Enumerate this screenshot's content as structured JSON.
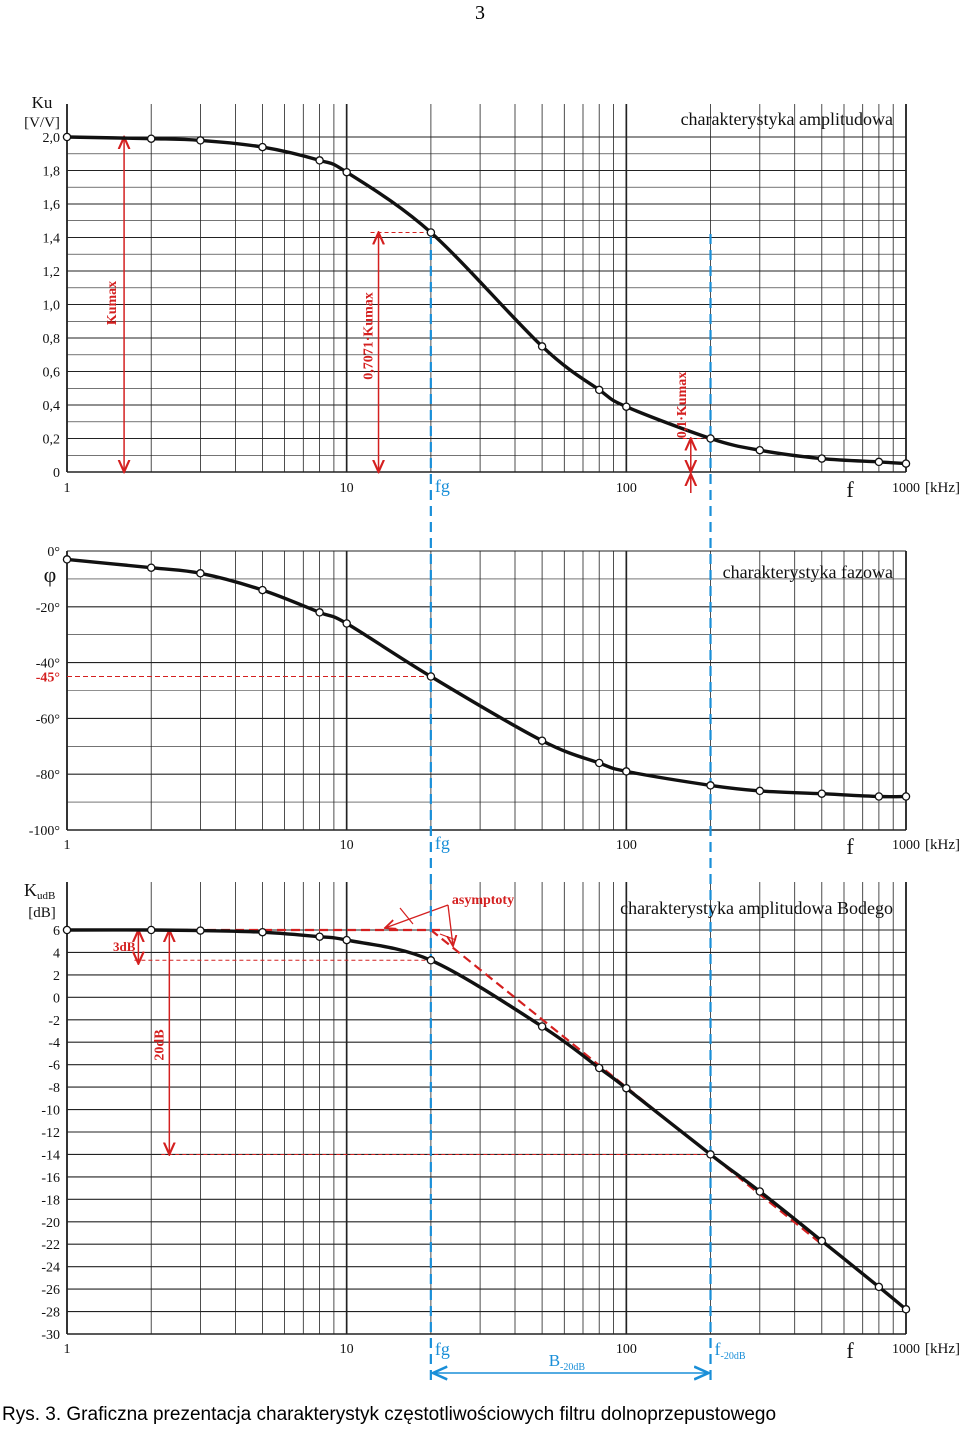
{
  "page_number": "3",
  "caption": "Rys. 3. Graficzna prezentacja charakterystyk częstotliwościowych filtru dolnoprzepustowego",
  "colors": {
    "curve": "#111111",
    "grid": "#222222",
    "annotation": "#d42020",
    "frequency_marker": "#1a8fd8"
  },
  "shared_x_axis": {
    "scale": "log",
    "range": [
      1,
      1000
    ],
    "tick_labels": [
      "1",
      "10",
      "100",
      "1000"
    ],
    "unit": "[kHz]",
    "symbol": "f"
  },
  "markers": {
    "fg": {
      "label": "fg",
      "x": 20
    },
    "f20": {
      "label": "f",
      "subscript": "-20dB",
      "x": 200
    },
    "bandwidth": {
      "label": "B",
      "subscript": "-20dB"
    }
  },
  "chart_data": [
    {
      "type": "line",
      "title": "charakterystyka amplitudowa",
      "ylabel": "Ku",
      "yunit": "[V/V]",
      "xscale": "log",
      "xlim": [
        1,
        1000
      ],
      "ylim": [
        0,
        2
      ],
      "grid": true,
      "y_ticks": [
        "0",
        "0,2",
        "0,4",
        "0,6",
        "0,8",
        "1,0",
        "1,2",
        "1,4",
        "1,6",
        "1,8",
        "2,0"
      ],
      "series": [
        {
          "x": [
            1,
            2,
            3,
            5,
            8,
            10,
            20,
            50,
            80,
            100,
            200,
            300,
            500,
            800,
            1000
          ],
          "y": [
            2.0,
            1.99,
            1.98,
            1.94,
            1.86,
            1.79,
            1.43,
            0.75,
            0.49,
            0.39,
            0.2,
            0.13,
            0.08,
            0.06,
            0.05
          ]
        }
      ],
      "annotations": [
        {
          "text": "Kumax",
          "x": 1.6,
          "from": 0,
          "to": 2.0
        },
        {
          "text": "0,7071·Kumax",
          "x": 13,
          "from": 0,
          "to": 1.43
        },
        {
          "text": "0,1·Kumax",
          "x": 170,
          "from": 0,
          "to": 0.2
        }
      ]
    },
    {
      "type": "line",
      "title": "charakterystyka fazowa",
      "ylabel": "φ",
      "xscale": "log",
      "xlim": [
        1,
        1000
      ],
      "ylim": [
        -100,
        0
      ],
      "grid": true,
      "y_ticks": [
        "0°",
        "-20°",
        "-40°",
        "-60°",
        "-80°",
        "-100°"
      ],
      "series": [
        {
          "x": [
            1,
            2,
            3,
            5,
            8,
            10,
            20,
            50,
            80,
            100,
            200,
            300,
            500,
            800,
            1000
          ],
          "y": [
            -3,
            -6,
            -8,
            -14,
            -22,
            -26,
            -45,
            -68,
            -76,
            -79,
            -84,
            -86,
            -87,
            -88,
            -88
          ]
        }
      ],
      "annotations": [
        {
          "text": "-45°",
          "y": -45
        }
      ]
    },
    {
      "type": "line",
      "title": "charakterystyka amplitudowa Bodego",
      "ylabel": "K",
      "ylabel_sub": "udB",
      "yunit": "[dB]",
      "xscale": "log",
      "xlim": [
        1,
        1000
      ],
      "ylim": [
        -30,
        6
      ],
      "grid": true,
      "y_ticks": [
        "6",
        "4",
        "2",
        "0",
        "-2",
        "-4",
        "-6",
        "-8",
        "-10",
        "-12",
        "-14",
        "-16",
        "-18",
        "-20",
        "-22",
        "-24",
        "-26",
        "-28",
        "-30"
      ],
      "series": [
        {
          "x": [
            1,
            2,
            3,
            5,
            8,
            10,
            20,
            50,
            80,
            100,
            200,
            300,
            500,
            800,
            1000
          ],
          "y": [
            6,
            6,
            5.95,
            5.8,
            5.4,
            5.1,
            3.3,
            -2.6,
            -6.3,
            -8.1,
            -14,
            -17.3,
            -21.7,
            -25.8,
            -27.8
          ]
        }
      ],
      "asymptotes_label": "asymptoty",
      "annotations": [
        {
          "text": "3dB",
          "x": 1.8,
          "from": 3,
          "to": 6
        },
        {
          "text": "20dB",
          "x": 2.4,
          "from": -14,
          "to": 6
        }
      ]
    }
  ]
}
